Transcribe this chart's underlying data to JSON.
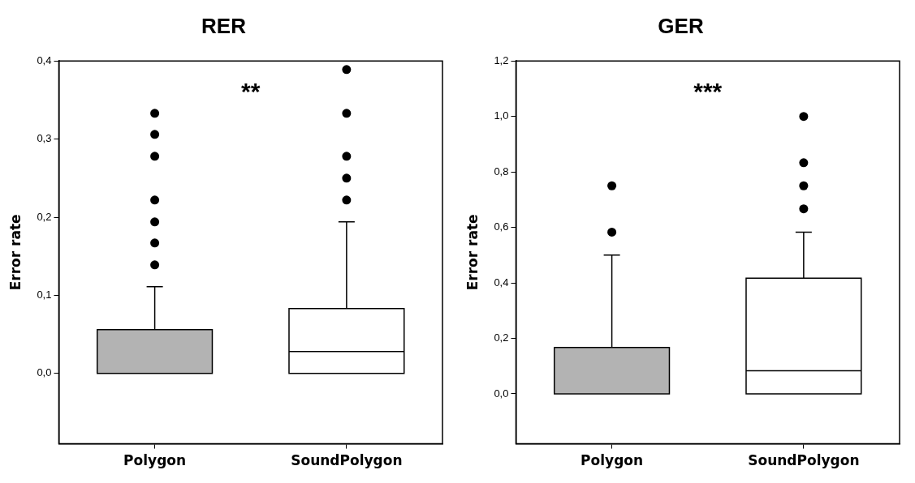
{
  "chart_data": [
    {
      "type": "box",
      "title": "RER",
      "ylabel": "Error rate",
      "categories": [
        "Polygon",
        "SoundPolygon"
      ],
      "colors": [
        "#b3b3b3",
        "#ffffff"
      ],
      "boxes": [
        {
          "low": 0,
          "q1": 0,
          "median": 0,
          "q3": 0.056,
          "high": 0.111,
          "outliers": [
            0.333,
            0.306,
            0.278,
            0.222,
            0.194,
            0.167,
            0.139
          ]
        },
        {
          "low": 0,
          "q1": 0,
          "median": 0.028,
          "q3": 0.083,
          "high": 0.194,
          "outliers": [
            0.389,
            0.333,
            0.278,
            0.25,
            0.222
          ]
        }
      ],
      "ylim": [
        -0.09,
        0.4
      ],
      "yticks": [
        {
          "value": 0,
          "label": "0,0"
        },
        {
          "value": 0.1,
          "label": "0,1"
        },
        {
          "value": 0.2,
          "label": "0,2"
        },
        {
          "value": 0.3,
          "label": "0,3"
        },
        {
          "value": 0.4,
          "label": "0,4"
        }
      ],
      "annotations": [
        "**"
      ],
      "grid": false,
      "legend": false
    },
    {
      "type": "box",
      "title": "GER",
      "ylabel": "Error rate",
      "categories": [
        "Polygon",
        "SoundPolygon"
      ],
      "colors": [
        "#b3b3b3",
        "#ffffff"
      ],
      "boxes": [
        {
          "low": 0,
          "q1": 0,
          "median": 0,
          "q3": 0.167,
          "high": 0.5,
          "outliers": [
            0.75,
            0.583
          ]
        },
        {
          "low": 0,
          "q1": 0,
          "median": 0.083,
          "q3": 0.417,
          "high": 0.583,
          "outliers": [
            1.0,
            0.833,
            0.75,
            0.667
          ]
        }
      ],
      "ylim": [
        -0.18,
        1.2
      ],
      "yticks": [
        {
          "value": 0,
          "label": "0,0"
        },
        {
          "value": 0.2,
          "label": "0,2"
        },
        {
          "value": 0.4,
          "label": "0,4"
        },
        {
          "value": 0.6,
          "label": "0,6"
        },
        {
          "value": 0.8,
          "label": "0,8"
        },
        {
          "value": 1.0,
          "label": "1,0"
        },
        {
          "value": 1.2,
          "label": "1,2"
        }
      ],
      "annotations": [
        "***"
      ],
      "grid": false,
      "legend": false
    }
  ]
}
